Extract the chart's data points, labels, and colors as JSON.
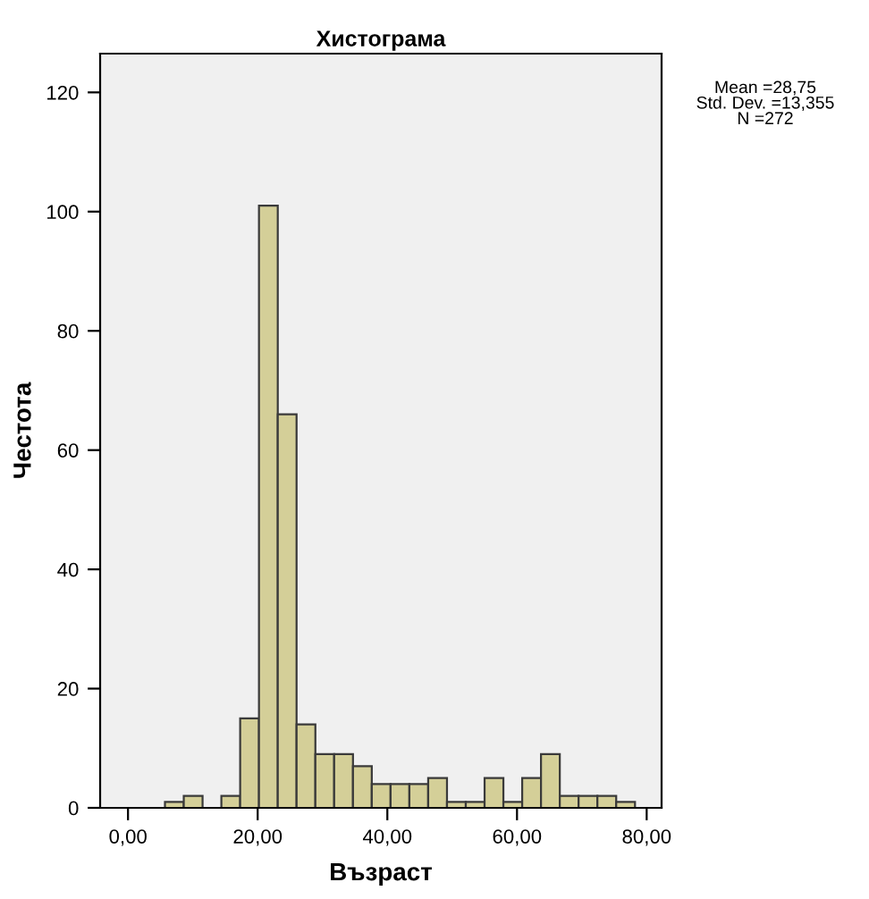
{
  "chart_data": {
    "type": "histogram",
    "title": "Хистограма",
    "xlabel": "Възраст",
    "ylabel": "Честота",
    "bins": [
      5.7,
      8.6,
      11.5,
      14.4,
      17.3,
      20.2,
      23.1,
      26.0,
      28.9,
      31.8,
      34.7,
      37.6,
      40.5,
      43.4,
      46.3,
      49.2,
      52.1,
      55.0,
      57.9,
      60.8,
      63.7,
      66.6,
      69.5,
      72.4,
      75.3,
      78.2
    ],
    "values": [
      1,
      2,
      0,
      2,
      15,
      101,
      66,
      14,
      9,
      9,
      7,
      4,
      4,
      4,
      5,
      1,
      1,
      5,
      1,
      5,
      9,
      2,
      2,
      2,
      1
    ],
    "color": "#d4cf98",
    "xlim": [
      -4.3,
      82.3
    ],
    "ylim": [
      0,
      126.5
    ],
    "xticks": [
      {
        "value": 0,
        "label": "0,00"
      },
      {
        "value": 20,
        "label": "20,00"
      },
      {
        "value": 40,
        "label": "40,00"
      },
      {
        "value": 60,
        "label": "60,00"
      },
      {
        "value": 80,
        "label": "80,00"
      }
    ],
    "yticks": [
      0,
      20,
      40,
      60,
      80,
      100,
      120
    ],
    "grid": false,
    "annotations": [
      "Mean =28,75\nStd. Dev. =13,355\nN =272"
    ]
  }
}
